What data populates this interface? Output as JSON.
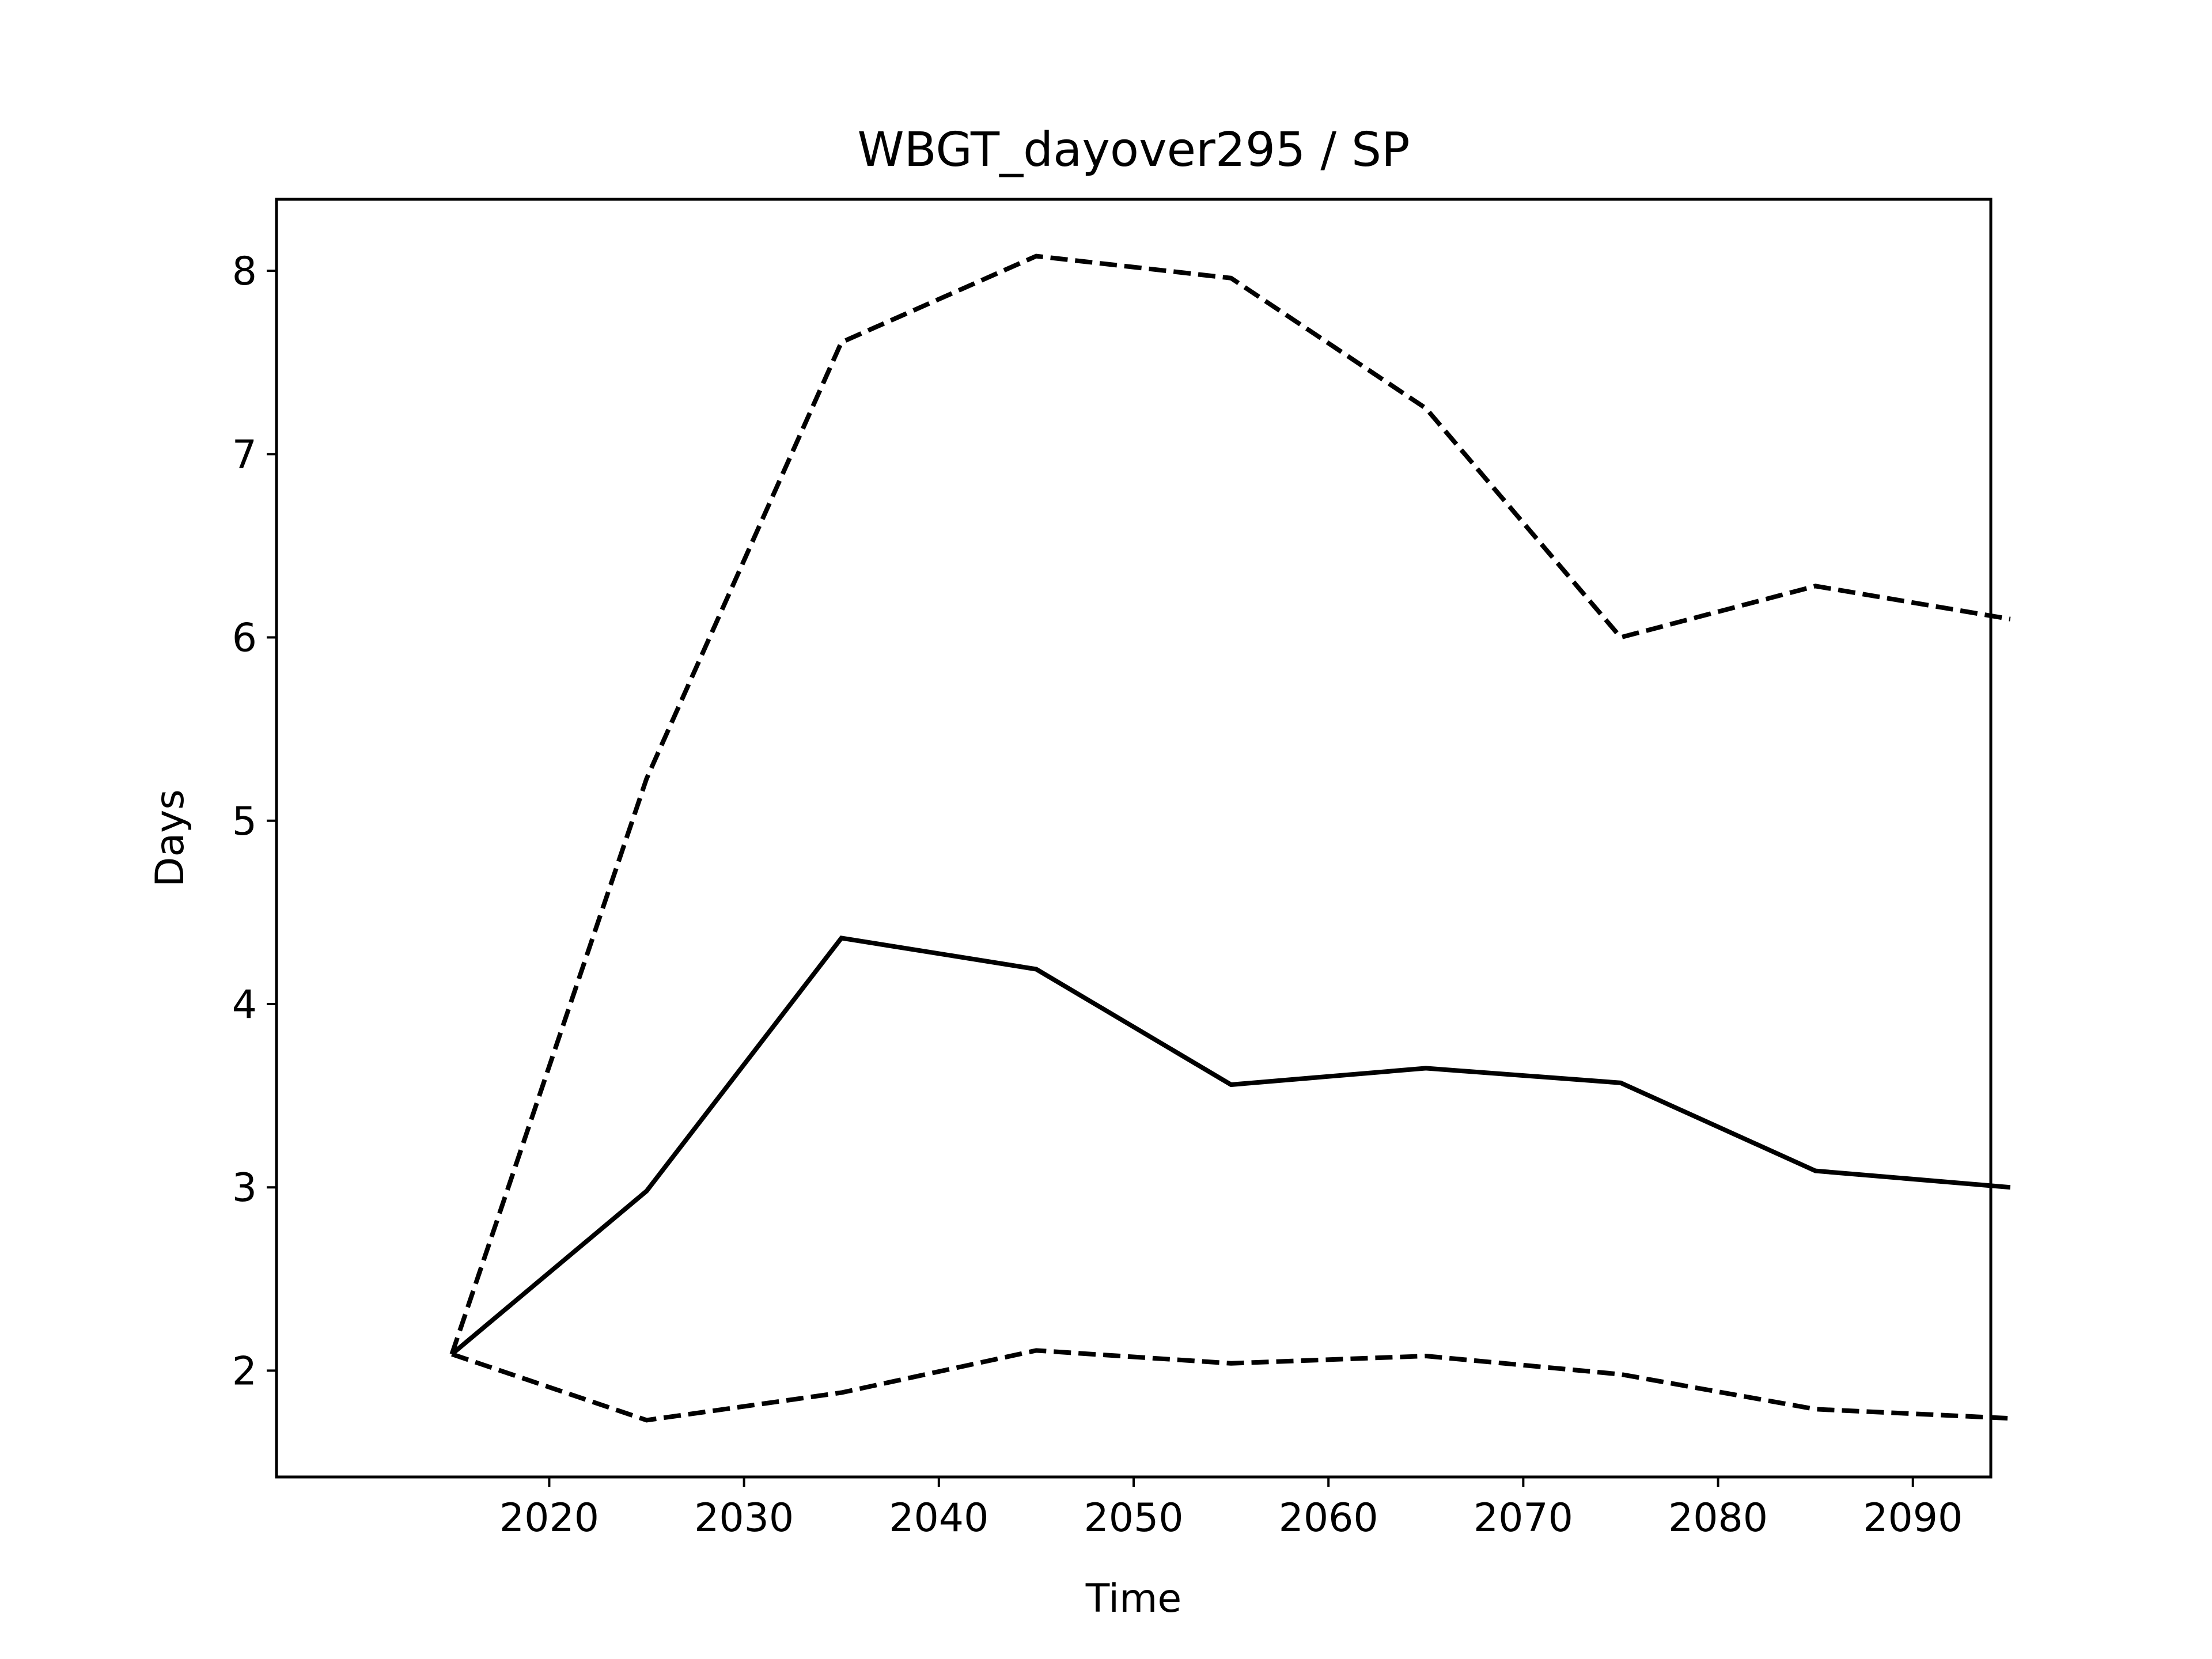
{
  "chart_data": {
    "type": "line",
    "title": "WBGT_dayover295 / SP",
    "xlabel": "Time",
    "ylabel": "Days",
    "x": [
      2015,
      2025,
      2035,
      2045,
      2055,
      2065,
      2075,
      2085,
      2095
    ],
    "xlim": [
      2006,
      2094
    ],
    "ylim": [
      1.42,
      8.39
    ],
    "xticks": [
      "2020",
      "2030",
      "2040",
      "2050",
      "2060",
      "2070",
      "2080",
      "2090"
    ],
    "yticks": [
      "2",
      "3",
      "4",
      "5",
      "6",
      "7",
      "8"
    ],
    "grid": false,
    "series": [
      {
        "line_style": "solid",
        "color": "#000000",
        "values": [
          2.09,
          2.98,
          4.36,
          4.19,
          3.56,
          3.65,
          3.57,
          3.09,
          3.0
        ]
      },
      {
        "line_style": "dashed",
        "color": "#000000",
        "values": [
          2.09,
          5.23,
          7.61,
          8.08,
          7.96,
          7.25,
          6.0,
          6.28,
          6.1
        ]
      },
      {
        "line_style": "dashed",
        "color": "#000000",
        "values": [
          2.09,
          1.73,
          1.88,
          2.11,
          2.04,
          2.08,
          1.98,
          1.79,
          1.74
        ]
      }
    ]
  }
}
